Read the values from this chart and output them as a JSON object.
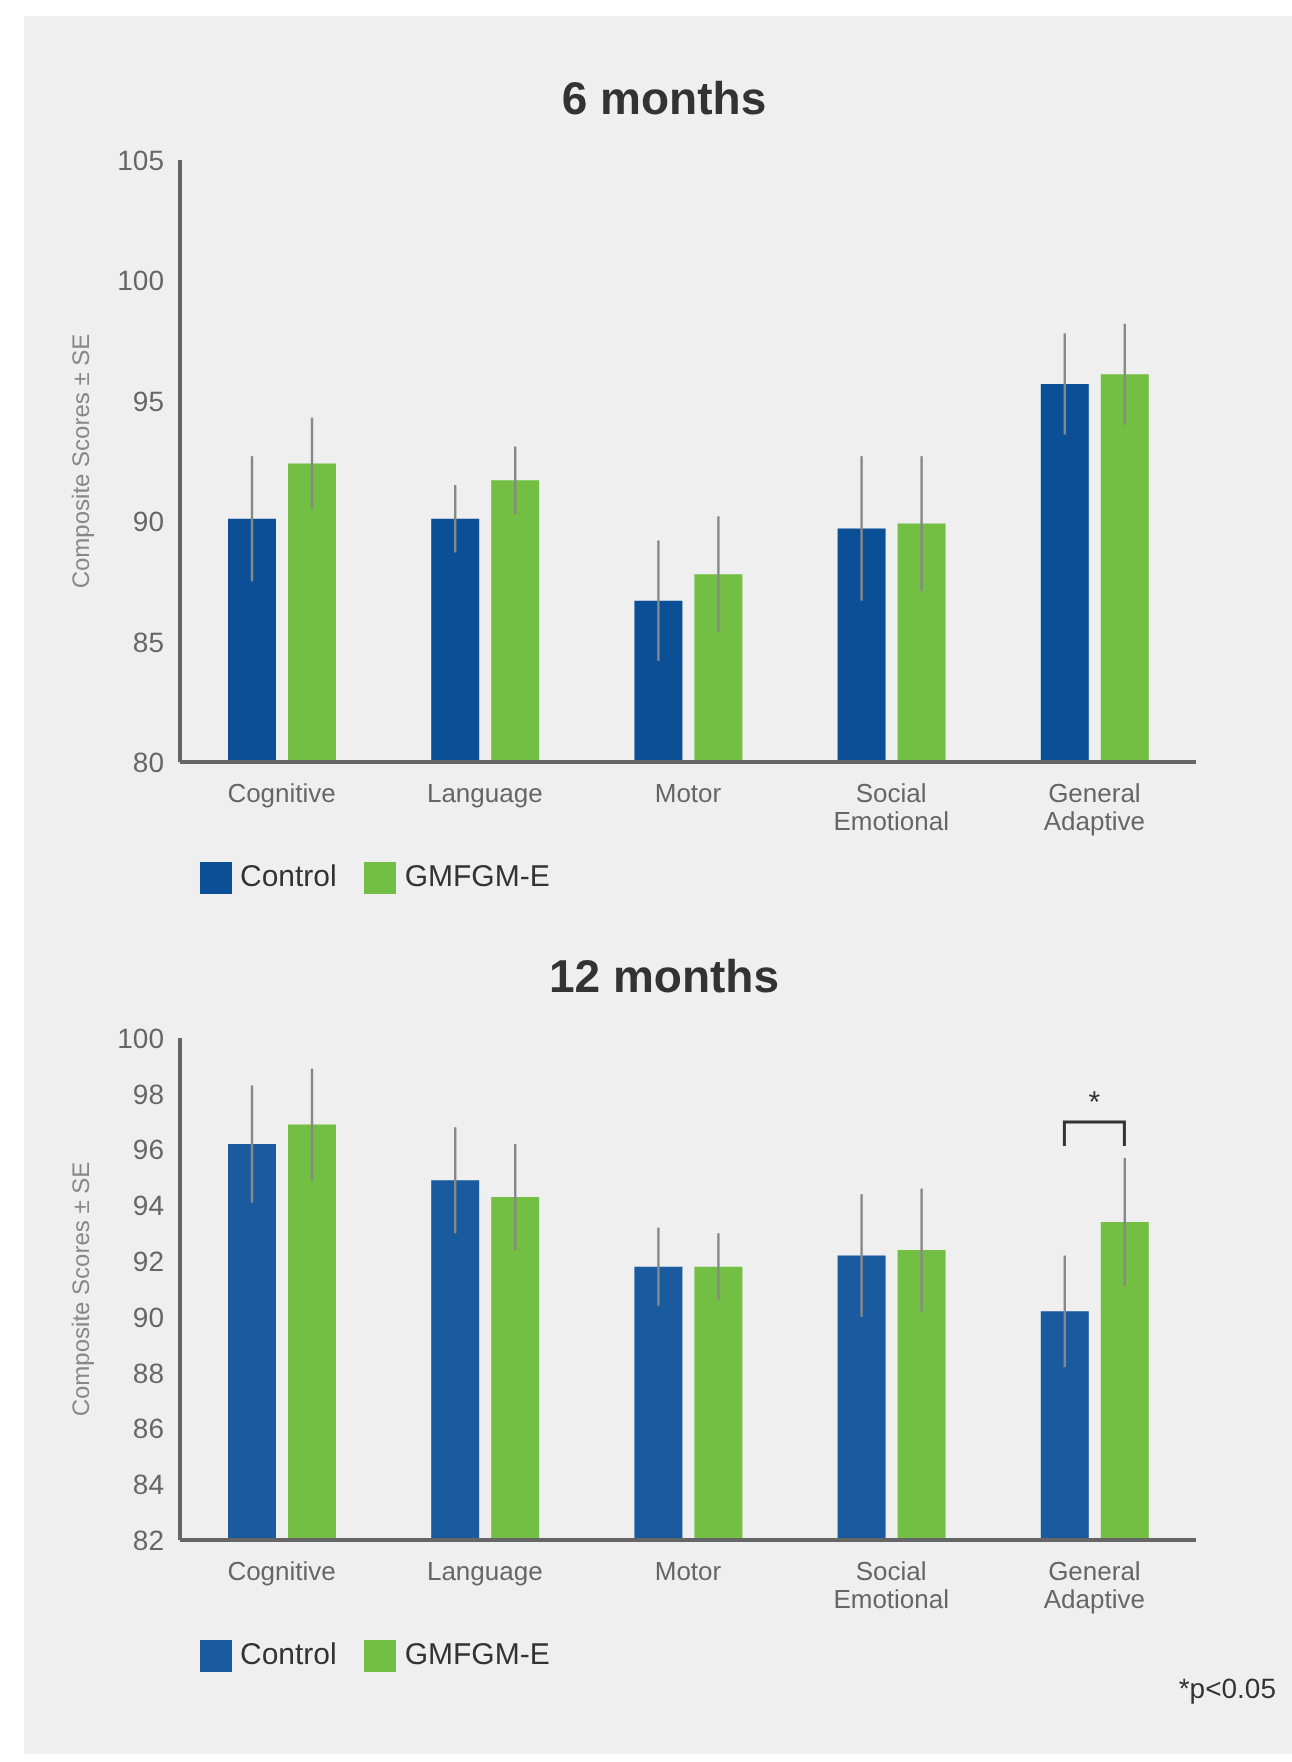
{
  "chart_data": [
    {
      "type": "bar",
      "title": "6 months",
      "ylabel": "Composite Scores ± SE",
      "categories": [
        "Cognitive",
        "Language",
        "Motor",
        "Social Emotional",
        "General Adaptive"
      ],
      "series": [
        {
          "name": "Control",
          "color": "#0b4f96",
          "values": [
            90.1,
            90.1,
            86.7,
            89.7,
            95.7
          ],
          "errors": [
            2.6,
            1.4,
            2.5,
            3,
            2.1
          ]
        },
        {
          "name": "GMFGM-E",
          "color": "#72bf44",
          "values": [
            92.4,
            91.7,
            87.8,
            89.9,
            96.1
          ],
          "errors": [
            1.9,
            1.4,
            2.4,
            2.8,
            2.1
          ]
        }
      ],
      "ylim": [
        80,
        105
      ],
      "yticks": [
        80,
        85,
        90,
        95,
        100,
        105
      ],
      "grid": false,
      "legend": "bottom left"
    },
    {
      "type": "bar",
      "title": "12 months",
      "ylabel": "Composite Scores ± SE",
      "categories": [
        "Cognitive",
        "Language",
        "Motor",
        "Social Emotional",
        "General Adaptive"
      ],
      "series": [
        {
          "name": "Control",
          "color": "#1a5ba0",
          "values": [
            96.2,
            94.9,
            91.8,
            92.2,
            90.2
          ],
          "errors": [
            2.1,
            1.9,
            1.4,
            2.2,
            2
          ]
        },
        {
          "name": "GMFGM-E",
          "color": "#72bf44",
          "values": [
            96.9,
            94.3,
            91.8,
            92.4,
            93.4
          ],
          "errors": [
            2,
            1.9,
            1.2,
            2.2,
            2.3
          ]
        }
      ],
      "ylim": [
        82,
        100
      ],
      "yticks": [
        82,
        84,
        86,
        88,
        90,
        92,
        94,
        96,
        98,
        100
      ],
      "grid": false,
      "legend": "bottom left",
      "annotations": [
        "*",
        "*p<0.05"
      ]
    }
  ]
}
